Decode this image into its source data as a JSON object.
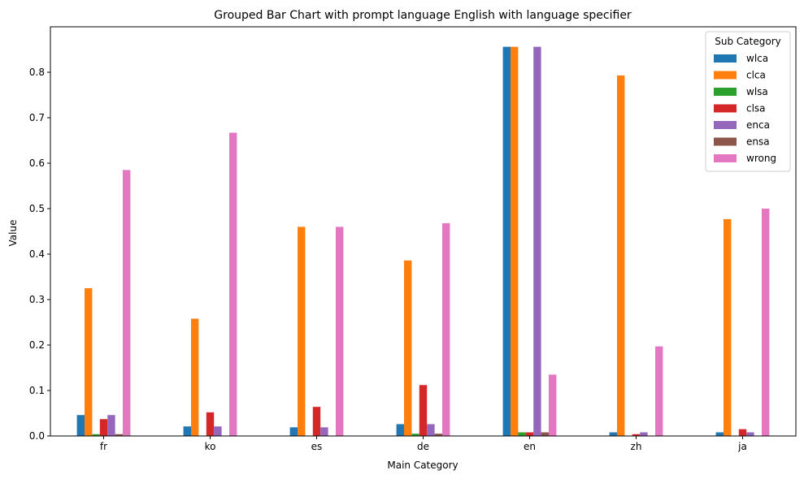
{
  "chart_data": {
    "type": "bar",
    "title": "Grouped Bar Chart with prompt language English with language specifier",
    "xlabel": "Main Category",
    "ylabel": "Value",
    "ylim": [
      0,
      0.9
    ],
    "yticks": [
      "0.0",
      "0.1",
      "0.2",
      "0.3",
      "0.4",
      "0.5",
      "0.6",
      "0.7",
      "0.8"
    ],
    "categories": [
      "fr",
      "ko",
      "es",
      "de",
      "en",
      "zh",
      "ja"
    ],
    "legend": {
      "title": "Sub Category",
      "placement": "top-right"
    },
    "series": [
      {
        "name": "wlca",
        "color": "#1f77b4",
        "values": [
          0.046,
          0.021,
          0.019,
          0.026,
          0.856,
          0.008,
          0.008
        ]
      },
      {
        "name": "clca",
        "color": "#ff7f0e",
        "values": [
          0.325,
          0.258,
          0.46,
          0.386,
          0.856,
          0.793,
          0.477
        ]
      },
      {
        "name": "wlsa",
        "color": "#2ca02c",
        "values": [
          0.004,
          0.0,
          0.0,
          0.005,
          0.008,
          0.0,
          0.0
        ]
      },
      {
        "name": "clsa",
        "color": "#d62728",
        "values": [
          0.037,
          0.052,
          0.064,
          0.112,
          0.008,
          0.004,
          0.015
        ]
      },
      {
        "name": "enca",
        "color": "#9467bd",
        "values": [
          0.046,
          0.021,
          0.019,
          0.026,
          0.856,
          0.008,
          0.008
        ]
      },
      {
        "name": "ensa",
        "color": "#8c564b",
        "values": [
          0.004,
          0.0,
          0.0,
          0.005,
          0.008,
          0.0,
          0.0
        ]
      },
      {
        "name": "wrong",
        "color": "#e377c2",
        "values": [
          0.585,
          0.667,
          0.46,
          0.468,
          0.135,
          0.197,
          0.5
        ]
      }
    ]
  }
}
